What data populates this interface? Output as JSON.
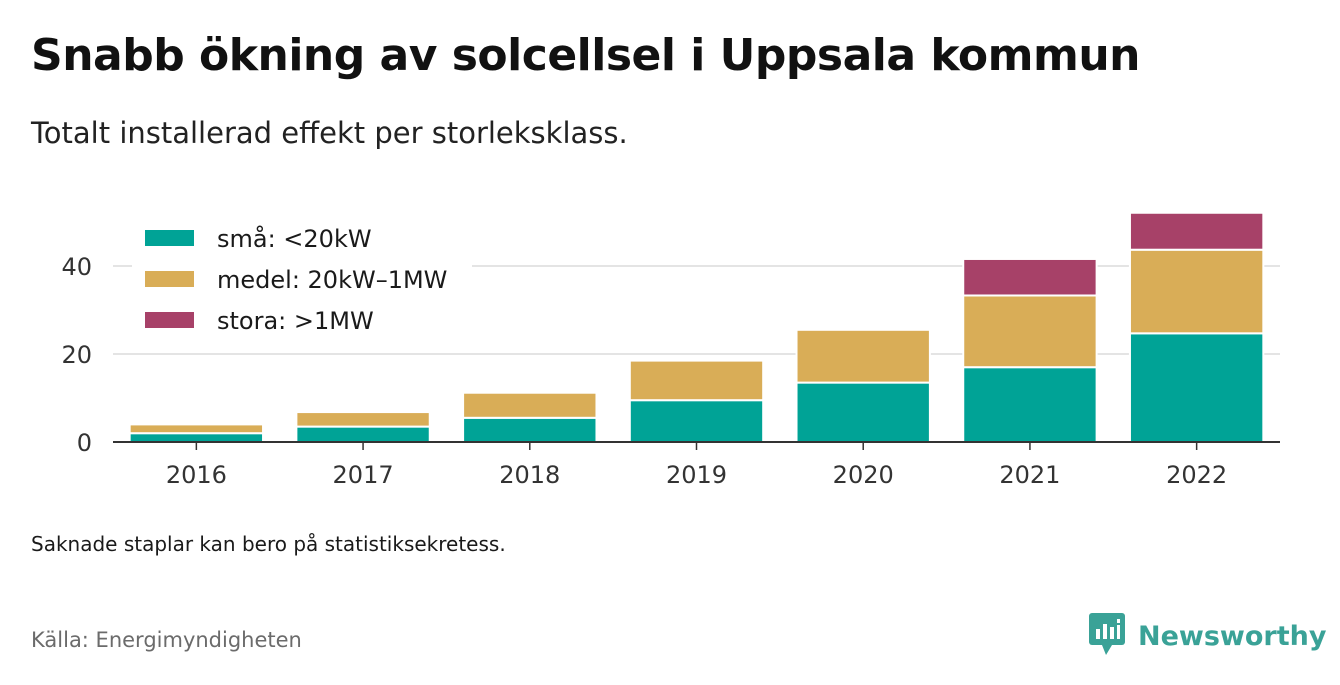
{
  "title": "Snabb ökning av solcellsel i Uppsala kommun",
  "subtitle": "Totalt installerad effekt per storleksklass.",
  "note": "Saknade staplar kan bero på statistiksekretess.",
  "source": "Källa: Energimyndigheten",
  "brand": {
    "name": "Newsworthy",
    "icon": "newsworthy-logo-icon",
    "color": "#3aa297"
  },
  "chart_data": {
    "type": "bar",
    "stacked": true,
    "categories": [
      "2016",
      "2017",
      "2018",
      "2019",
      "2020",
      "2021",
      "2022"
    ],
    "series": [
      {
        "name": "små: <20kW",
        "color": "#00a396",
        "values": [
          2.0,
          3.5,
          5.5,
          9.5,
          13.5,
          17.0,
          24.7
        ]
      },
      {
        "name": "medel: 20kW–1MW",
        "color": "#d9ad57",
        "values": [
          2.0,
          3.3,
          5.7,
          9.0,
          12.0,
          16.3,
          19.0
        ]
      },
      {
        "name": "stora: >1MW",
        "color": "#a74168",
        "values": [
          0,
          0,
          0,
          0,
          0,
          8.3,
          8.4
        ]
      }
    ],
    "yticks": [
      0,
      20,
      40
    ],
    "ylim": [
      0,
      55
    ],
    "xlabel": "",
    "ylabel": "",
    "grid": true,
    "legend_position": "top-left"
  }
}
